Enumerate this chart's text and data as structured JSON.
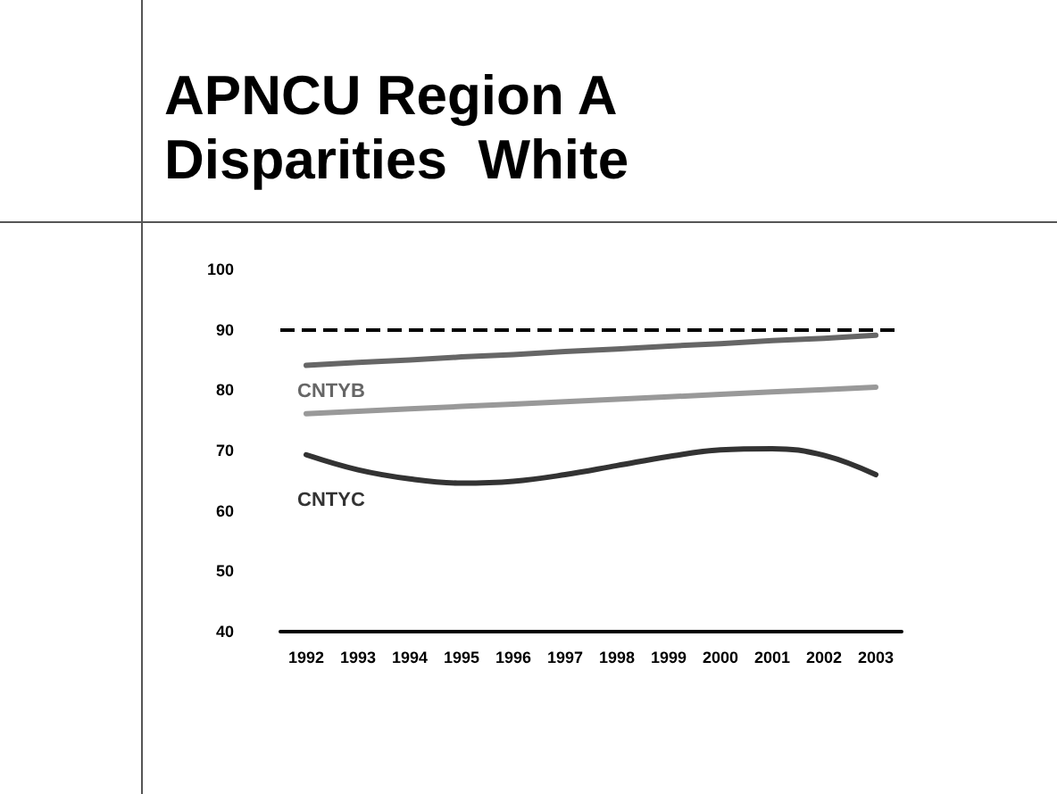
{
  "chart_data": {
    "type": "line",
    "title": "APNCU Region A\nDisparities  White",
    "categories": [
      "1992",
      "1993",
      "1994",
      "1995",
      "1996",
      "1997",
      "1998",
      "1999",
      "2000",
      "2001",
      "2002",
      "2003"
    ],
    "series": [
      {
        "name": "CNTYB",
        "color": "#666666",
        "values": [
          84.1,
          84.6,
          85.0,
          85.5,
          85.9,
          86.4,
          86.8,
          87.3,
          87.7,
          88.2,
          88.6,
          89.1
        ]
      },
      {
        "color": "#999999",
        "values": [
          76.1,
          76.5,
          76.9,
          77.3,
          77.7,
          78.1,
          78.5,
          78.9,
          79.3,
          79.7,
          80.1,
          80.5
        ]
      },
      {
        "name": "CNTYC",
        "color": "#333333",
        "values": [
          69.3,
          66.8,
          65.3,
          64.6,
          64.9,
          66.0,
          67.5,
          69.0,
          70.1,
          70.3,
          69.2,
          66.0
        ]
      }
    ],
    "ylim": [
      40,
      100
    ],
    "yticks": [
      40,
      50,
      60,
      70,
      80,
      90,
      100
    ],
    "ref_lines": [
      {
        "axis": "y",
        "value": 90,
        "color": "#000000",
        "line_style": "dashed"
      }
    ],
    "grid": false,
    "legend": false,
    "marker": "none",
    "line_style": "solid"
  }
}
